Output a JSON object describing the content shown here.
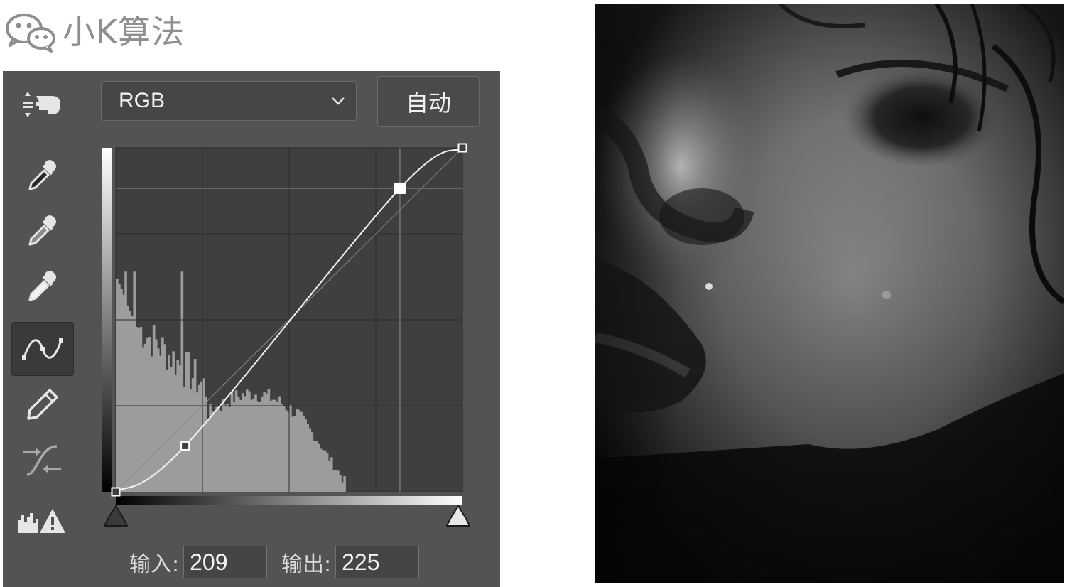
{
  "brand": {
    "name": "小K算法",
    "icon": "wechat-icon"
  },
  "curves": {
    "channel": "RGB",
    "auto_label": "自动",
    "input_label": "输入:",
    "input_value": "209",
    "output_label": "输出:",
    "output_value": "225",
    "tools": [
      "on-image-adjust-icon",
      "black-point-eyedropper-icon",
      "gray-point-eyedropper-icon",
      "white-point-eyedropper-icon",
      "curve-point-tool-icon",
      "pencil-icon",
      "smooth-curve-icon",
      "clipping-warning-icon"
    ],
    "curve_points": [
      [
        0,
        0
      ],
      [
        51,
        34
      ],
      [
        209,
        225
      ],
      [
        255,
        255
      ]
    ],
    "selected_point": [
      209,
      225
    ]
  },
  "photo": {
    "description_icon": "grayscale-face-photo"
  }
}
